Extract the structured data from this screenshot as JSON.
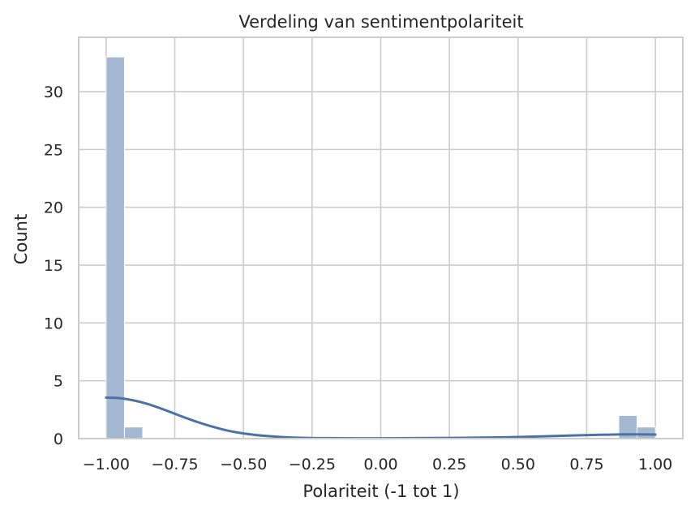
{
  "chart_data": {
    "type": "bar",
    "title": "Verdeling van sentimentpolariteit",
    "xlabel": "Polariteit (-1 tot 1)",
    "ylabel": "Count",
    "xlim": [
      -1.1,
      1.1
    ],
    "ylim": [
      0,
      34.7
    ],
    "grid": true,
    "xticks": [
      -1.0,
      -0.75,
      -0.5,
      -0.25,
      0.0,
      0.25,
      0.5,
      0.75,
      1.0
    ],
    "xtick_labels": [
      "−1.00",
      "−0.75",
      "−0.50",
      "−0.25",
      "0.00",
      "0.25",
      "0.50",
      "0.75",
      "1.00"
    ],
    "yticks": [
      0,
      5,
      10,
      15,
      20,
      25,
      30
    ],
    "ytick_labels": [
      "0",
      "5",
      "10",
      "15",
      "20",
      "25",
      "30"
    ],
    "bins": [
      {
        "x0": -1.0,
        "x1": -0.9333,
        "count": 33
      },
      {
        "x0": -0.9333,
        "x1": -0.8667,
        "count": 1
      },
      {
        "x0": 0.8667,
        "x1": 0.9333,
        "count": 2
      },
      {
        "x0": 0.9333,
        "x1": 1.0,
        "count": 1
      }
    ],
    "kde": {
      "x": [
        -1.0,
        -0.95,
        -0.9,
        -0.85,
        -0.8,
        -0.75,
        -0.7,
        -0.65,
        -0.6,
        -0.55,
        -0.5,
        -0.45,
        -0.4,
        -0.35,
        -0.3,
        -0.25,
        -0.2,
        0.0,
        0.2,
        0.4,
        0.5,
        0.6,
        0.7,
        0.8,
        0.9,
        1.0
      ],
      "y": [
        3.55,
        3.5,
        3.3,
        3.0,
        2.6,
        2.15,
        1.7,
        1.3,
        0.95,
        0.65,
        0.45,
        0.3,
        0.2,
        0.12,
        0.08,
        0.05,
        0.04,
        0.03,
        0.05,
        0.1,
        0.14,
        0.2,
        0.27,
        0.33,
        0.37,
        0.35
      ]
    },
    "colors": {
      "bar_fill": "#a4b8d2",
      "bar_edge": "#ffffff",
      "kde_line": "#4c72a4",
      "grid": "#cccccc",
      "spine": "#cccccc",
      "text": "#262626"
    }
  }
}
